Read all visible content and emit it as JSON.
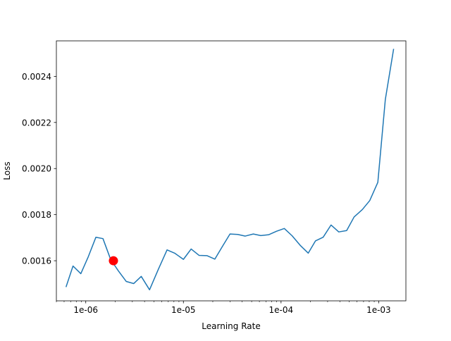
{
  "chart_data": {
    "type": "line",
    "title": "",
    "xlabel": "Learning Rate",
    "ylabel": "Loss",
    "xscale": "log",
    "xlim": [
      5e-07,
      0.0019
    ],
    "ylim": [
      0.001426,
      0.002554
    ],
    "grid": false,
    "legend": "none",
    "xticks": [
      {
        "value": 1e-06,
        "label": "1e-06"
      },
      {
        "value": 1e-05,
        "label": "1e-05"
      },
      {
        "value": 0.0001,
        "label": "1e-04"
      },
      {
        "value": 0.001,
        "label": "1e-03"
      }
    ],
    "yticks": [
      {
        "value": 0.0016,
        "label": "0.0016"
      },
      {
        "value": 0.0018,
        "label": "0.0018"
      },
      {
        "value": 0.002,
        "label": "0.0020"
      },
      {
        "value": 0.0022,
        "label": "0.0022"
      },
      {
        "value": 0.0024,
        "label": "0.0024"
      }
    ],
    "series": [
      {
        "color": "#1f77b4",
        "x": [
          6.3e-07,
          7.4e-07,
          8.9e-07,
          1.06e-06,
          1.27e-06,
          1.5e-06,
          1.8e-06,
          2.15e-06,
          2.6e-06,
          3.1e-06,
          3.7e-06,
          4.5e-06,
          5.5e-06,
          6.8e-06,
          8.2e-06,
          1e-05,
          1.2e-05,
          1.45e-05,
          1.75e-05,
          2.1e-05,
          2.5e-05,
          3e-05,
          3.6e-05,
          4.3e-05,
          5.2e-05,
          6.2e-05,
          7.5e-05,
          9e-05,
          0.000108,
          0.00013,
          0.000157,
          0.00019,
          0.000225,
          0.00027,
          0.000325,
          0.00039,
          0.00047,
          0.00056,
          0.00068,
          0.00081,
          0.00098,
          0.00117,
          0.00142
        ],
        "y": [
          0.001488,
          0.001577,
          0.001544,
          0.001617,
          0.001702,
          0.001696,
          0.001605,
          0.001557,
          0.00151,
          0.001501,
          0.001532,
          0.001474,
          0.00156,
          0.001647,
          0.001632,
          0.001606,
          0.001651,
          0.001623,
          0.001622,
          0.001607,
          0.001661,
          0.001716,
          0.001714,
          0.001707,
          0.001716,
          0.001709,
          0.001713,
          0.001728,
          0.00174,
          0.001708,
          0.001667,
          0.001633,
          0.001686,
          0.001702,
          0.001755,
          0.001725,
          0.001731,
          0.00179,
          0.001822,
          0.001861,
          0.00194,
          0.0023,
          0.002517
        ]
      }
    ],
    "annotations": [
      {
        "type": "marker",
        "x": 1.92e-06,
        "y": 0.0016,
        "color": "#ff0000"
      }
    ]
  }
}
